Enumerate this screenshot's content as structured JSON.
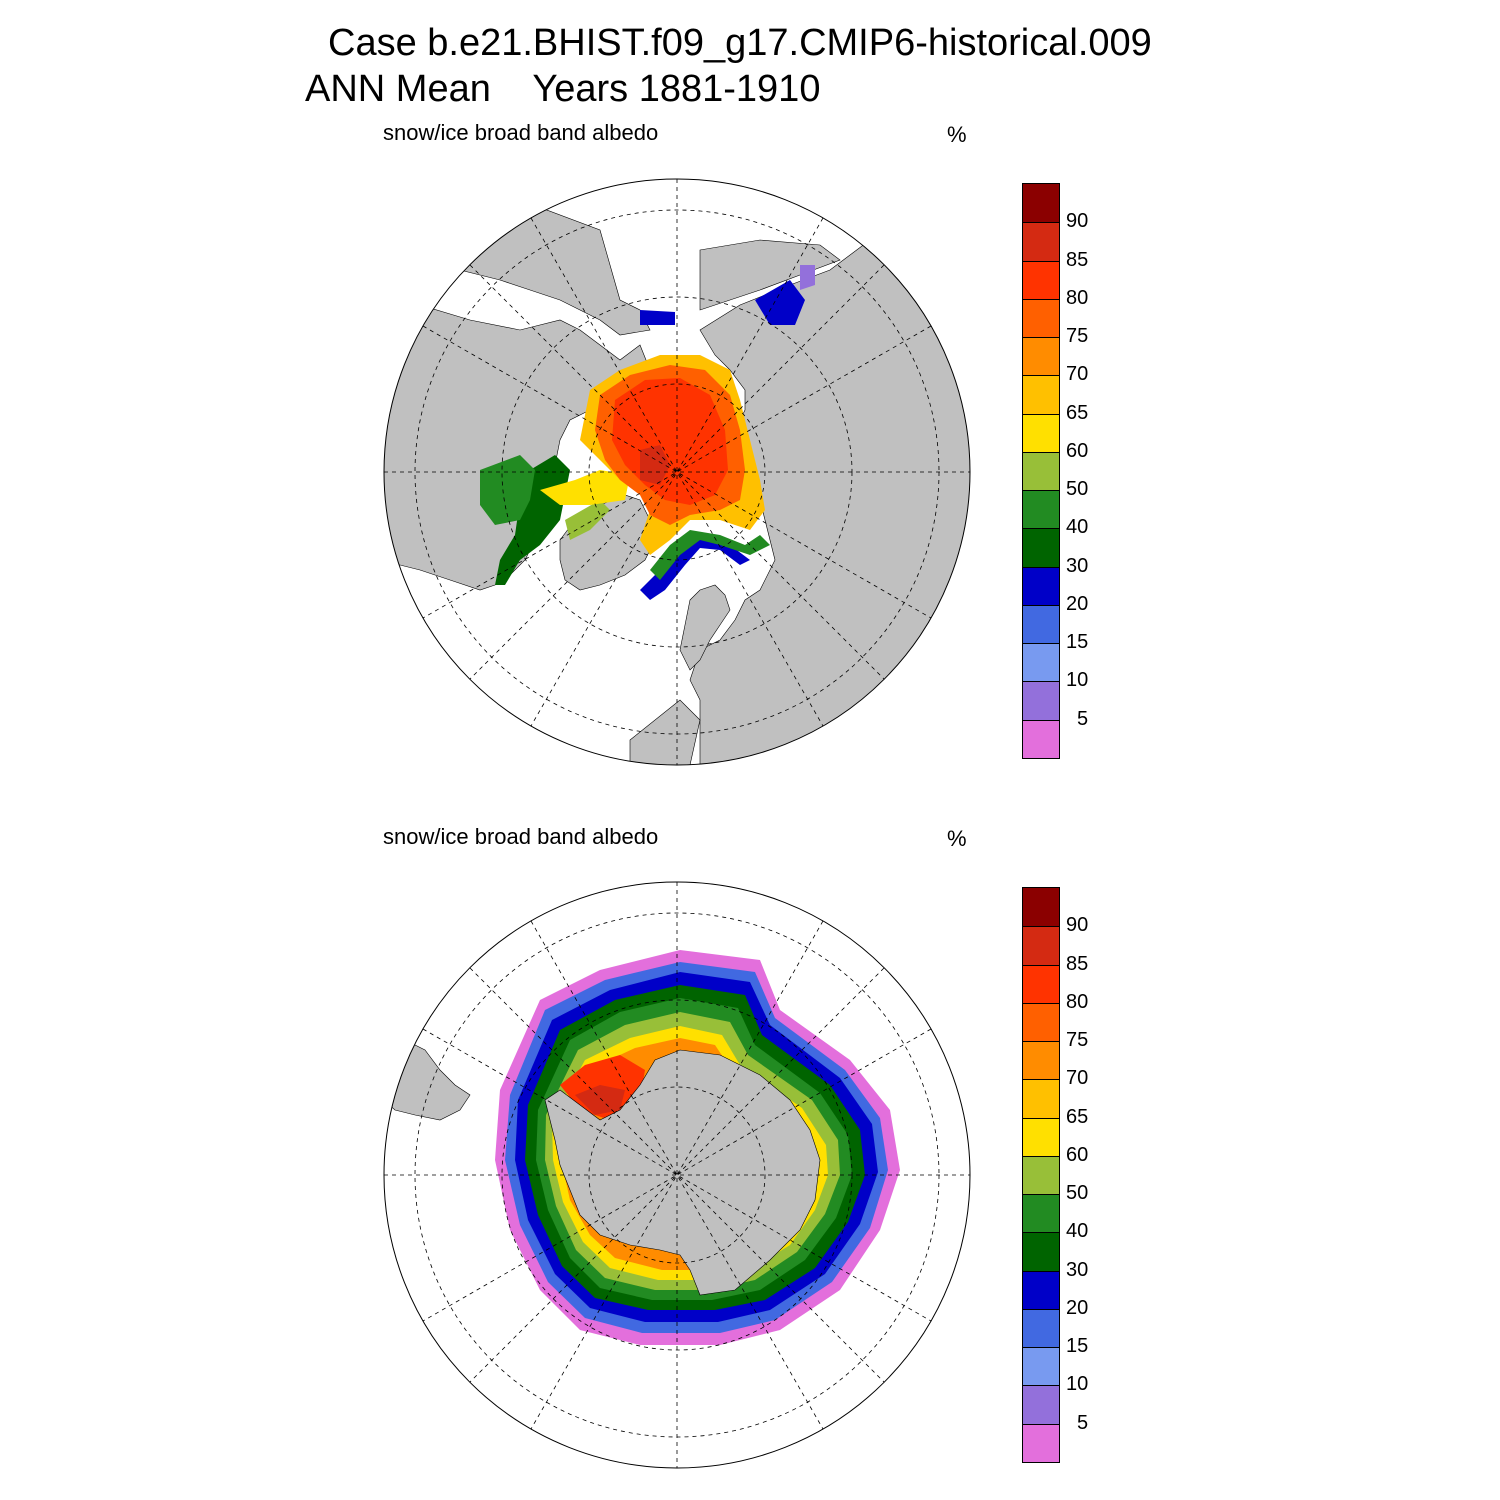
{
  "header": {
    "case_title": "Case b.e21.BHIST.f09_g17.CMIP6-historical.009",
    "season": "ANN Mean",
    "years": "Years 1881-1910"
  },
  "panels": [
    {
      "name": "north",
      "variable": "snow/ice broad band albedo",
      "units": "%"
    },
    {
      "name": "south",
      "variable": "snow/ice broad band albedo",
      "units": "%"
    }
  ],
  "colorbar": {
    "tick_labels": [
      "90",
      "85",
      "80",
      "75",
      "70",
      "65",
      "60",
      "50",
      "40",
      "30",
      "20",
      "15",
      "10",
      "5"
    ],
    "colors": [
      "#8b0000",
      "#d42a12",
      "#ff3300",
      "#ff6000",
      "#ff8c00",
      "#ffc000",
      "#ffe000",
      "#98bf38",
      "#228b22",
      "#006400",
      "#0000c8",
      "#4169e1",
      "#789af0",
      "#9370db",
      "#e36fdc"
    ]
  },
  "colors": {
    "land": "#c0c0c0",
    "ocean": "#ffffff",
    "grid": "#000000"
  }
}
